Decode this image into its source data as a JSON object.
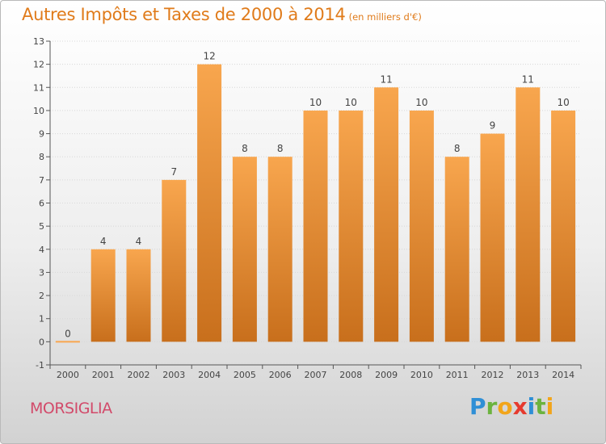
{
  "header": {
    "title": "Autres Impôts et Taxes de 2000 à 2014",
    "subtitle": "(en milliers d'€)"
  },
  "footer": {
    "commune": "MORSIGLIA",
    "brand_letters": [
      {
        "ch": "P",
        "color": "#2f8fd6"
      },
      {
        "ch": "r",
        "color": "#6cb33f"
      },
      {
        "ch": "o",
        "color": "#f2a51a"
      },
      {
        "ch": "x",
        "color": "#e63a2e"
      },
      {
        "ch": "i",
        "color": "#2f8fd6"
      },
      {
        "ch": "t",
        "color": "#6cb33f"
      },
      {
        "ch": "i",
        "color": "#f2a51a"
      }
    ]
  },
  "colors": {
    "bar_light": "#f8a64e",
    "bar_dark": "#c86f1c",
    "title": "#e07b1a",
    "axis": "#555555",
    "grid": "#d8d8d8",
    "label": "#444444"
  },
  "chart_data": {
    "type": "bar",
    "title": "Autres Impôts et Taxes de 2000 à 2014",
    "subtitle": "(en milliers d'€)",
    "categories": [
      "2000",
      "2001",
      "2002",
      "2003",
      "2004",
      "2005",
      "2006",
      "2007",
      "2008",
      "2009",
      "2010",
      "2011",
      "2012",
      "2013",
      "2014"
    ],
    "values": [
      0,
      4,
      4,
      7,
      12,
      8,
      8,
      10,
      10,
      11,
      10,
      8,
      9,
      11,
      10
    ],
    "data_labels": [
      "0",
      "4",
      "4",
      "7",
      "12",
      "8",
      "8",
      "10",
      "10",
      "11",
      "10",
      "8",
      "9",
      "11",
      "10"
    ],
    "yticks": [
      -1,
      0,
      1,
      2,
      3,
      4,
      5,
      6,
      7,
      8,
      9,
      10,
      11,
      12,
      13
    ],
    "ylim": [
      -1,
      13
    ],
    "xlabel": "",
    "ylabel": "",
    "grid": true
  }
}
